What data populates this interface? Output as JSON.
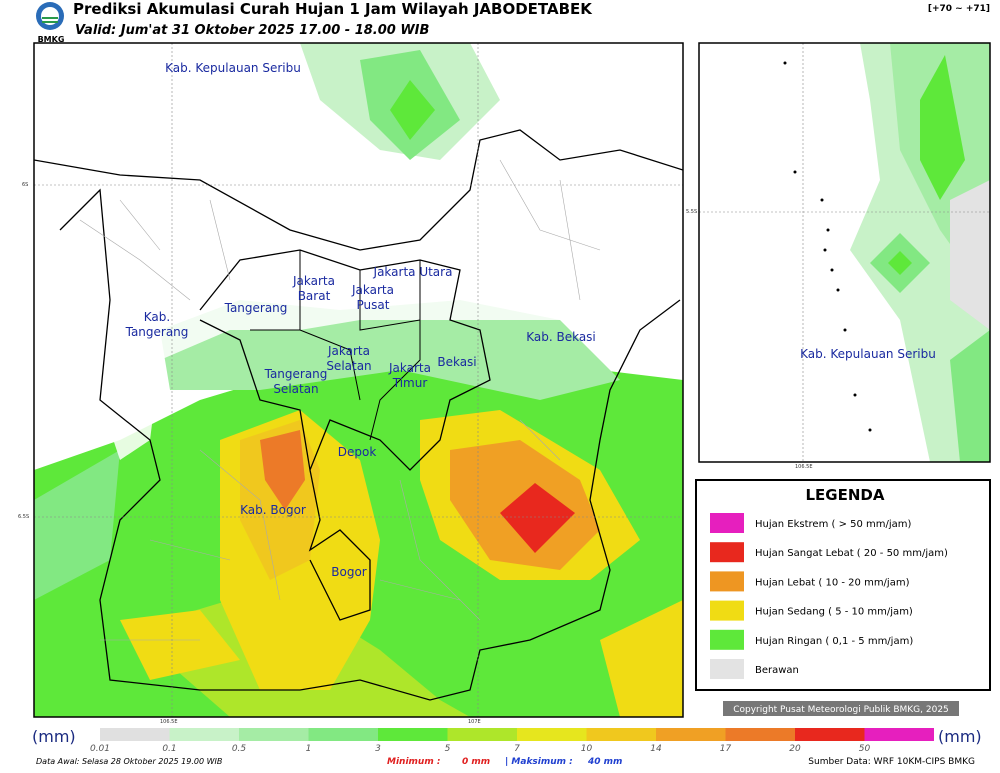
{
  "header": {
    "title": "Prediksi Akumulasi Curah Hujan 1 Jam Wilayah JABODETABEK",
    "valid": "Valid: Jum'at 31 Oktober 2025 17.00 - 18.00 WIB",
    "code": "[+70 ~ +71]",
    "logo": "BMKG"
  },
  "map": {
    "labels": [
      [
        "Kab. Kepulauan Seribu"
      ],
      [
        "Jakarta Utara"
      ],
      [
        "Jakarta",
        "Barat"
      ],
      [
        "Jakarta",
        "Pusat"
      ],
      [
        "Tangerang"
      ],
      [
        "Kab.",
        "Tangerang"
      ],
      [
        "Kab. Bekasi"
      ],
      [
        "Jakarta",
        "Selatan"
      ],
      [
        "Jakarta",
        "Timur"
      ],
      [
        "Bekasi"
      ],
      [
        "Tangerang",
        "Selatan"
      ],
      [
        "Depok"
      ],
      [
        "Kab. Bogor"
      ],
      [
        "Bogor"
      ]
    ],
    "axis": [
      "6S",
      "6.5S",
      "106.5E",
      "107E"
    ]
  },
  "inset": {
    "label": "Kab. Kepulauan Seribu",
    "axis": [
      "5.5S",
      "106.5E"
    ]
  },
  "legend": {
    "title": "LEGENDA",
    "items": [
      {
        "label": "Hujan Ekstrem ( > 50 mm/jam)",
        "color": "#e61fbe"
      },
      {
        "label": "Hujan Sangat Lebat ( 20 - 50 mm/jam)",
        "color": "#e8281e"
      },
      {
        "label": "Hujan Lebat ( 10 - 20 mm/jam)",
        "color": "#ee9622"
      },
      {
        "label": "Hujan Sedang ( 5 - 10 mm/jam)",
        "color": "#f0dc14"
      },
      {
        "label": "Hujan Ringan ( 0,1 - 5 mm/jam)",
        "color": "#5ee83a"
      },
      {
        "label": "Berawan",
        "color": "#e3e3e3"
      }
    ]
  },
  "copyright": "Copyright Pusat Meteorologi Publik BMKG, 2025",
  "colorbar": {
    "unit": "(mm)",
    "ticks": [
      "0.01",
      "0.1",
      "0.5",
      "1",
      "3",
      "5",
      "7",
      "10",
      "14",
      "17",
      "20",
      "50"
    ],
    "colors": [
      "#e0e0e0",
      "#c8f2c8",
      "#a5eca5",
      "#82e882",
      "#5ee83a",
      "#aee62a",
      "#e6e61e",
      "#f0c81e",
      "#f0a024",
      "#ec7a28",
      "#e8281e",
      "#e61fbe"
    ]
  },
  "footer": {
    "data_awal": "Data Awal: Selasa 28 Oktober 2025 19.00 WIB",
    "min_label": "Minimum :",
    "min_value": "0 mm",
    "max_label": "| Maksimum :",
    "max_value": "40 mm",
    "source": "Sumber Data: WRF 10KM-CIPS BMKG"
  }
}
